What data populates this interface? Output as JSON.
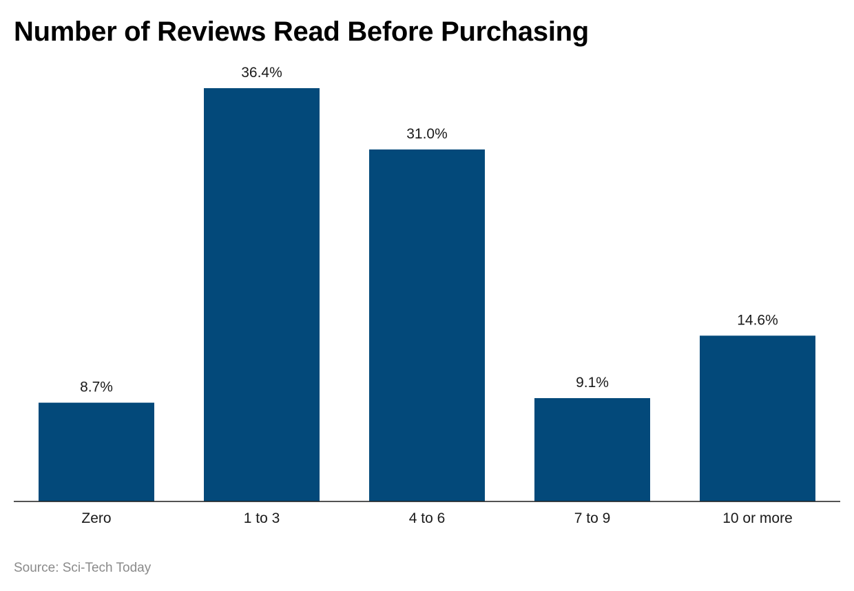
{
  "chart_data": {
    "type": "bar",
    "title": "Number of Reviews Read Before Purchasing",
    "categories": [
      "Zero",
      "1 to 3",
      "4 to 6",
      "7 to 9",
      "10 or more"
    ],
    "values": [
      8.7,
      36.4,
      31.0,
      9.1,
      14.6
    ],
    "value_labels": [
      "8.7%",
      "36.4%",
      "31.0%",
      "9.1%",
      "14.6%"
    ],
    "unit": "%",
    "xlabel": "",
    "ylabel": "",
    "ylim": [
      0,
      36.4
    ],
    "grid": false,
    "legend": "none",
    "bar_color": "#03497a",
    "source": "Source: Sci-Tech Today"
  }
}
